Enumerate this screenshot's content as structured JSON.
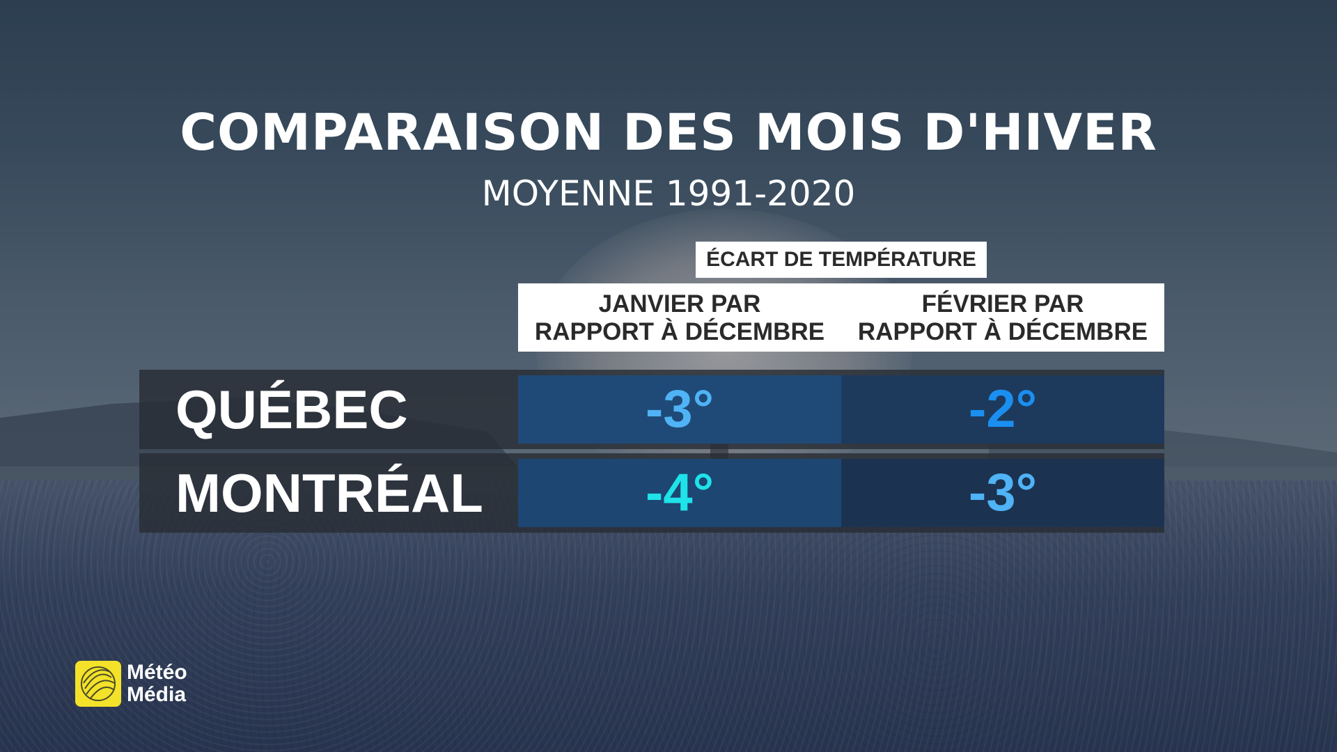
{
  "title": "COMPARAISON DES MOIS D'HIVER",
  "subtitle": "MOYENNE 1991-2020",
  "header": {
    "group_label": "ÉCART DE TEMPÉRATURE",
    "columns": [
      {
        "line1": "JANVIER PAR",
        "line2": "RAPPORT À DÉCEMBRE"
      },
      {
        "line1": "FÉVRIER PAR",
        "line2": "RAPPORT À DÉCEMBRE"
      }
    ]
  },
  "rows": [
    {
      "city": "QUÉBEC",
      "values": [
        "-3°",
        "-2°"
      ],
      "colors": [
        "#4fb3f5",
        "#1a8ff0"
      ]
    },
    {
      "city": "MONTRÉAL",
      "values": [
        "-4°",
        "-3°"
      ],
      "colors": [
        "#1ee3e8",
        "#4fb3f5"
      ]
    }
  ],
  "logo": {
    "line1": "Météo",
    "line2": "Média",
    "color": "#f3e229"
  }
}
